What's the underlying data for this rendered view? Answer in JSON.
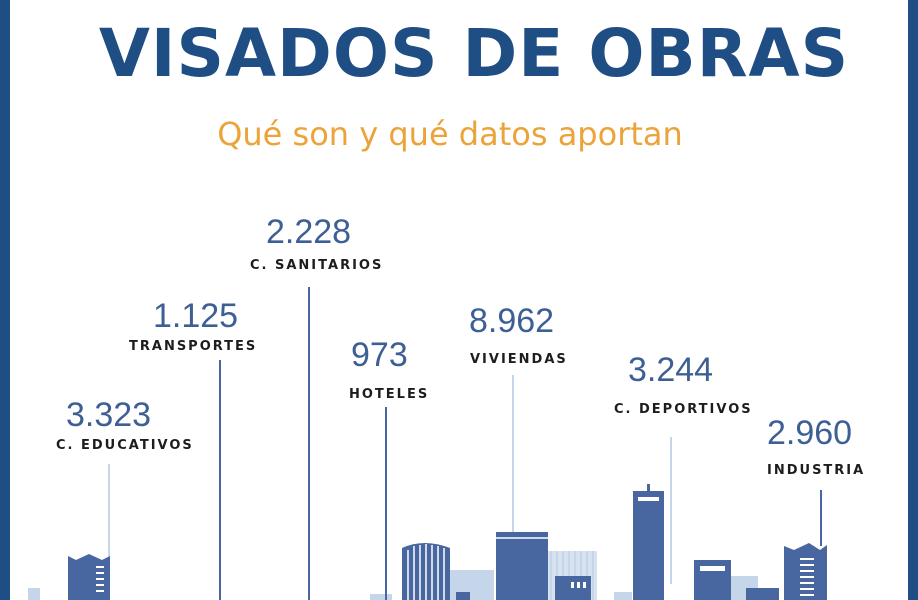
{
  "header": {
    "title": "VISADOS DE OBRAS",
    "subtitle": "Qué son y qué datos aportan"
  },
  "categories": [
    {
      "value": "3.323",
      "label": "C. EDUCATIVOS"
    },
    {
      "value": "1.125",
      "label": "TRANSPORTES"
    },
    {
      "value": "2.228",
      "label": "C. SANITARIOS"
    },
    {
      "value": "973",
      "label": "HOTELES"
    },
    {
      "value": "8.962",
      "label": "VIVIENDAS"
    },
    {
      "value": "3.244",
      "label": "C. DEPORTIVOS"
    },
    {
      "value": "2.960",
      "label": "INDUSTRIA"
    }
  ],
  "colors": {
    "brand_blue": "#1f4e85",
    "building_blue": "#4866a0",
    "light_blue": "#c5d5ea",
    "accent_orange": "#eba43a"
  }
}
